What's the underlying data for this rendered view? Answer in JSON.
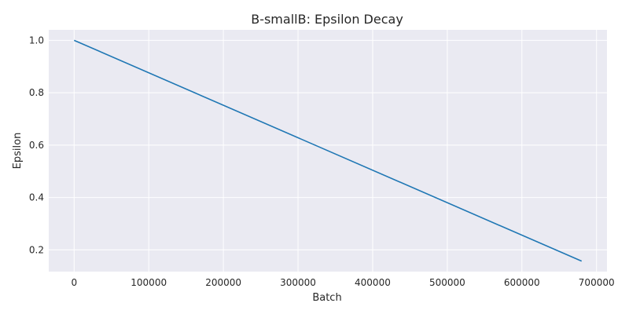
{
  "chart_data": {
    "type": "line",
    "title": "B-smallB: Epsilon Decay",
    "xlabel": "Batch",
    "ylabel": "Epsilon",
    "xlim": [
      -34000,
      714000
    ],
    "ylim": [
      0.117,
      1.04
    ],
    "xticks": [
      0,
      100000,
      200000,
      300000,
      400000,
      500000,
      600000,
      700000
    ],
    "xtick_labels": [
      "0",
      "100000",
      "200000",
      "300000",
      "400000",
      "500000",
      "600000",
      "700000"
    ],
    "yticks": [
      0.2,
      0.4,
      0.6,
      0.8,
      1.0
    ],
    "ytick_labels": [
      "0.2",
      "0.4",
      "0.6",
      "0.8",
      "1.0"
    ],
    "grid": true,
    "legend": "none",
    "series": [
      {
        "color": "#1f77b4",
        "x": [
          0,
          680000
        ],
        "y": [
          1.0,
          0.157
        ]
      }
    ]
  }
}
